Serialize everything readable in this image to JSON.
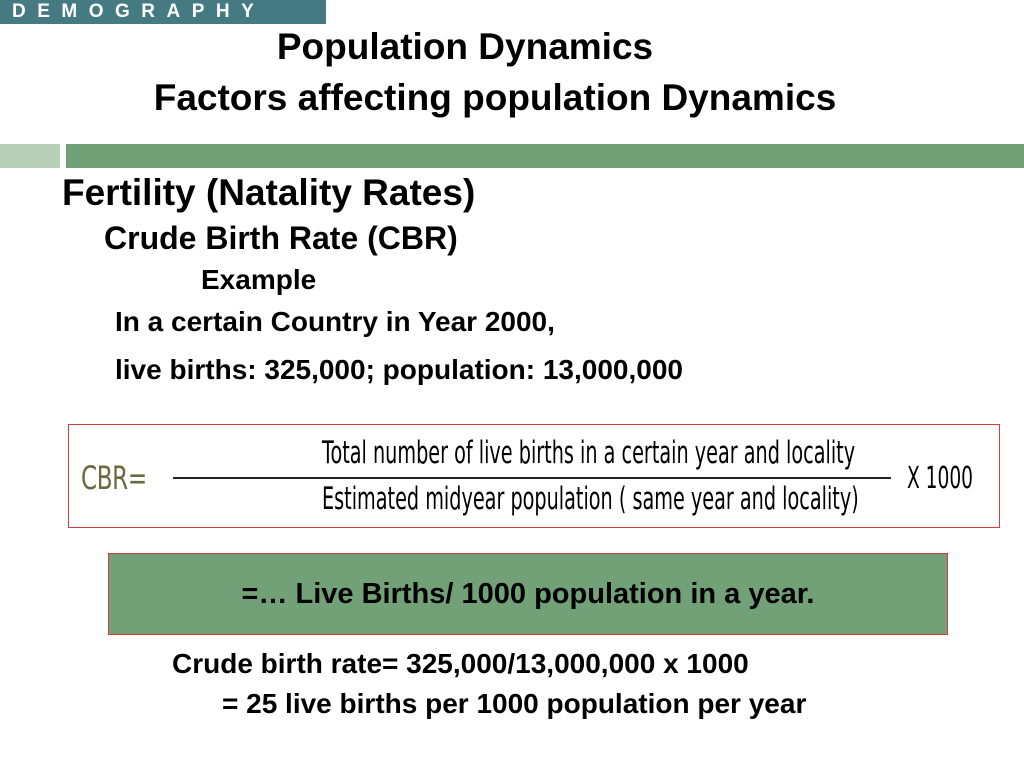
{
  "header": {
    "tag": "DEMOGRAPHY",
    "title_line1": "Population Dynamics",
    "title_line2": "Factors affecting population Dynamics"
  },
  "section": {
    "heading": "Fertility (Natality Rates)",
    "subheading": "Crude Birth Rate (CBR)",
    "example_label": "Example",
    "example_line1": "In a certain Country in Year 2000,",
    "example_line2": "live births: 325,000; population: 13,000,000"
  },
  "formula": {
    "label": "CBR=",
    "numerator": "Total number of live births in a certain year and locality",
    "denominator": "Estimated midyear population ( same year and locality)",
    "multiplier": "X 1000"
  },
  "result_box": {
    "text": "=… Live Births/ 1000 population in a year."
  },
  "calculation": {
    "line1": "Crude birth rate= 325,000/13,000,000 x 1000",
    "line2": "= 25 live births per 1000 population per year"
  },
  "colors": {
    "tag_bg": "#467a82",
    "bar_light": "#b8cfb8",
    "bar_green": "#72a077",
    "border_red": "#d63a3a",
    "cbr_label": "#6a6a3c"
  }
}
